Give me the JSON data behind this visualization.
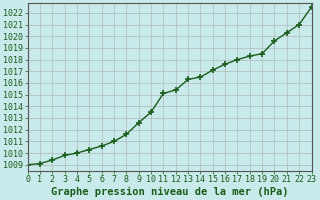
{
  "x": [
    0,
    1,
    2,
    3,
    4,
    5,
    6,
    7,
    8,
    9,
    10,
    11,
    12,
    13,
    14,
    15,
    16,
    17,
    18,
    19,
    20,
    21,
    22,
    23
  ],
  "y": [
    1009.0,
    1009.1,
    1009.4,
    1009.8,
    1010.0,
    1010.3,
    1010.6,
    1011.0,
    1011.6,
    1012.6,
    1013.5,
    1015.1,
    1015.4,
    1016.3,
    1016.5,
    1017.1,
    1017.6,
    1018.0,
    1018.3,
    1018.5,
    1019.6,
    1020.3,
    1021.0,
    1022.5
  ],
  "xlim": [
    0,
    23
  ],
  "ylim": [
    1008.5,
    1022.8
  ],
  "yticks": [
    1009,
    1010,
    1011,
    1012,
    1013,
    1014,
    1015,
    1016,
    1017,
    1018,
    1019,
    1020,
    1021,
    1022
  ],
  "xticks": [
    0,
    1,
    2,
    3,
    4,
    5,
    6,
    7,
    8,
    9,
    10,
    11,
    12,
    13,
    14,
    15,
    16,
    17,
    18,
    19,
    20,
    21,
    22,
    23
  ],
  "line_color": "#1a5c1a",
  "marker": "+",
  "marker_size": 5,
  "bg_color": "#c8eaea",
  "grid_color": "#b0b8b8",
  "xlabel": "Graphe pression niveau de la mer (hPa)",
  "tick_label_color": "#1a5c1a",
  "xlabel_color": "#1a5c1a",
  "xlabel_fontsize": 7.5,
  "tick_fontsize": 6.0,
  "linewidth": 1.0
}
